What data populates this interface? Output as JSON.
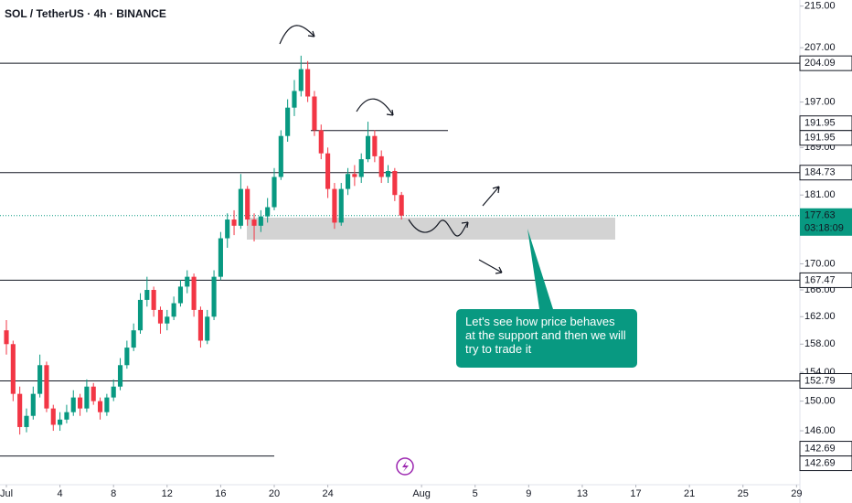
{
  "chart_data": {
    "type": "candlestick",
    "title": "SOL / TetherUS · 4h · BINANCE",
    "log_scale": true,
    "up_color": "#089981",
    "down_color": "#f23645",
    "x": [
      0,
      0.5,
      1,
      1.5,
      2,
      2.5,
      3,
      3.5,
      4,
      4.5,
      5,
      5.5,
      6,
      6.5,
      7,
      7.5,
      8,
      8.5,
      9,
      9.5,
      10,
      10.5,
      11,
      11.5,
      12,
      12.5,
      13,
      13.5,
      14,
      14.5,
      15,
      15.5,
      16,
      16.5,
      17,
      17.5,
      18,
      18.5,
      19,
      19.5,
      20,
      20.5,
      21,
      21.5,
      22,
      22.5,
      23,
      23.5,
      24,
      24.5,
      25,
      25.5,
      26,
      26.5,
      27,
      27.5,
      28,
      28.5,
      29,
      29.5
    ],
    "candles": [
      [
        160,
        161.5,
        156.5,
        158
      ],
      [
        158,
        158.5,
        150,
        151
      ],
      [
        151,
        152,
        145.5,
        146.5
      ],
      [
        146.5,
        149,
        145.8,
        148
      ],
      [
        148,
        152,
        147.5,
        151
      ],
      [
        151,
        156.5,
        150.5,
        155
      ],
      [
        155,
        155.5,
        148.5,
        149
      ],
      [
        149,
        149.5,
        146,
        146.8
      ],
      [
        146.8,
        148.5,
        146,
        147.5
      ],
      [
        147.5,
        149.5,
        147,
        148.5
      ],
      [
        148.5,
        151.5,
        148,
        150.5
      ],
      [
        150.5,
        151,
        148,
        149
      ],
      [
        149,
        153,
        148.5,
        152
      ],
      [
        152,
        152.5,
        149.5,
        150
      ],
      [
        150,
        150.5,
        147.5,
        148.5
      ],
      [
        148.5,
        151,
        148,
        150.5
      ],
      [
        150.5,
        153,
        150,
        152
      ],
      [
        152,
        156,
        151.5,
        155
      ],
      [
        155,
        158.5,
        154.5,
        157.5
      ],
      [
        157.5,
        161,
        157,
        160
      ],
      [
        160,
        165.5,
        159.5,
        164.5
      ],
      [
        164.5,
        168,
        163.5,
        166
      ],
      [
        166,
        166.5,
        162,
        163
      ],
      [
        163,
        163.5,
        159.5,
        161
      ],
      [
        161,
        163,
        160,
        162
      ],
      [
        162,
        165,
        161.5,
        164
      ],
      [
        164,
        167.5,
        163.5,
        166.5
      ],
      [
        166.5,
        169,
        165.5,
        168
      ],
      [
        168,
        168.5,
        162,
        163
      ],
      [
        163,
        163.5,
        157.5,
        158.5
      ],
      [
        158.5,
        163,
        158,
        162
      ],
      [
        162,
        169,
        161.5,
        168
      ],
      [
        168,
        175,
        167.5,
        174
      ],
      [
        174,
        178,
        172.5,
        177
      ],
      [
        177,
        178.5,
        174.5,
        176
      ],
      [
        176,
        184.5,
        175.5,
        182
      ],
      [
        182,
        182.5,
        176,
        177
      ],
      [
        177,
        178,
        173.5,
        176
      ],
      [
        176,
        178.5,
        175,
        177.5
      ],
      [
        177.5,
        180.5,
        176.5,
        179
      ],
      [
        179,
        185.5,
        178.5,
        184
      ],
      [
        184,
        192,
        183.5,
        191
      ],
      [
        191,
        197.5,
        190,
        196
      ],
      [
        196,
        201,
        194.5,
        199
      ],
      [
        199,
        205.5,
        198,
        203
      ],
      [
        203,
        204.5,
        197,
        198
      ],
      [
        198,
        199,
        191,
        192
      ],
      [
        192,
        193,
        187,
        188
      ],
      [
        188,
        189,
        180.5,
        182
      ],
      [
        182,
        183,
        175.5,
        176.5
      ],
      [
        176.5,
        183,
        176,
        182
      ],
      [
        182,
        185.5,
        181,
        184.5
      ],
      [
        184.5,
        186,
        182.5,
        184
      ],
      [
        184,
        188,
        183,
        187
      ],
      [
        187,
        193.5,
        186.5,
        191
      ],
      [
        191,
        192,
        186.5,
        187.5
      ],
      [
        187.5,
        188.5,
        183,
        184
      ],
      [
        184,
        186,
        183,
        185
      ],
      [
        185,
        185.5,
        180,
        181
      ],
      [
        181,
        181.5,
        177,
        177.63
      ]
    ],
    "xlim": [
      -0.478,
      59.25
    ],
    "xticks": [
      {
        "value": 0,
        "label": "Jul"
      },
      4,
      8,
      12,
      16,
      20,
      24,
      {
        "value": 31,
        "label": "Aug"
      },
      {
        "value": 35,
        "label": "5"
      },
      {
        "value": 39,
        "label": "9"
      },
      {
        "value": 43,
        "label": "13"
      },
      {
        "value": 47,
        "label": "17"
      },
      {
        "value": 51,
        "label": "21"
      },
      {
        "value": 55,
        "label": "25"
      },
      {
        "value": 59,
        "label": "29"
      }
    ],
    "ylim": [
      139.0,
      216.2
    ],
    "yticks": [
      {
        "value": 215,
        "label": "215.00"
      },
      {
        "value": 207,
        "label": "207.00"
      },
      {
        "value": 197,
        "label": "197.00"
      },
      {
        "value": 189,
        "label": "189.00"
      },
      {
        "value": 181,
        "label": "181.00"
      },
      {
        "value": 170,
        "label": "170.00"
      },
      {
        "value": 166,
        "label": "166.00"
      },
      {
        "value": 162,
        "label": "162.00"
      },
      {
        "value": 158,
        "label": "158.00"
      },
      {
        "value": 154,
        "label": "154.00"
      },
      {
        "value": 150,
        "label": "150.00"
      },
      {
        "value": 146,
        "label": "146.00"
      }
    ],
    "levels": [
      204.09,
      191.95,
      191.95,
      184.73,
      167.47,
      152.79,
      142.69,
      142.69
    ],
    "last_price": 177.63,
    "countdown": "03:18:09",
    "annotation": "Let's see how price behaves at the support and then we will try to trade it"
  }
}
